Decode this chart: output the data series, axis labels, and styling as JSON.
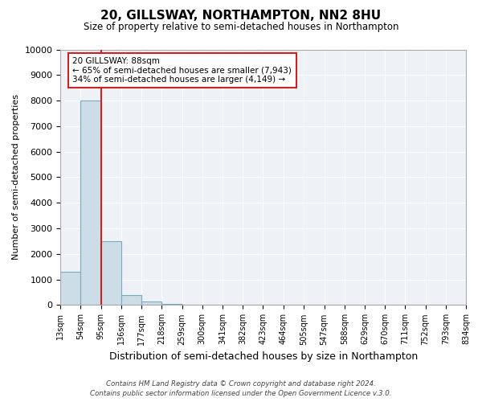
{
  "title": "20, GILLSWAY, NORTHAMPTON, NN2 8HU",
  "subtitle": "Size of property relative to semi-detached houses in Northampton",
  "xlabel": "Distribution of semi-detached houses by size in Northampton",
  "ylabel": "Number of semi-detached properties",
  "bar_color": "#ccdde8",
  "bar_edge_color": "#7aaabb",
  "background_color": "#eef2f7",
  "grid_color": "#ffffff",
  "fig_background": "#ffffff",
  "bin_labels": [
    "13sqm",
    "54sqm",
    "95sqm",
    "136sqm",
    "177sqm",
    "218sqm",
    "259sqm",
    "300sqm",
    "341sqm",
    "382sqm",
    "423sqm",
    "464sqm",
    "505sqm",
    "547sqm",
    "588sqm",
    "629sqm",
    "670sqm",
    "711sqm",
    "752sqm",
    "793sqm",
    "834sqm"
  ],
  "bin_values": [
    1300,
    8000,
    2500,
    400,
    150,
    50,
    20,
    0,
    0,
    0,
    0,
    0,
    0,
    0,
    0,
    0,
    0,
    0,
    0,
    0
  ],
  "bin_edges_sqm": [
    13,
    54,
    95,
    136,
    177,
    218,
    259,
    300,
    341,
    382,
    423,
    464,
    505,
    547,
    588,
    629,
    670,
    711,
    752,
    793,
    834
  ],
  "vline_x": 95,
  "ylim": [
    0,
    10000
  ],
  "yticks": [
    0,
    1000,
    2000,
    3000,
    4000,
    5000,
    6000,
    7000,
    8000,
    9000,
    10000
  ],
  "annotation_title": "20 GILLSWAY: 88sqm",
  "annotation_line1": "← 65% of semi-detached houses are smaller (7,943)",
  "annotation_line2": "34% of semi-detached houses are larger (4,149) →",
  "annotation_box_facecolor": "#ffffff",
  "annotation_box_edgecolor": "#cc2222",
  "vline_color": "#cc2222",
  "footer1": "Contains HM Land Registry data © Crown copyright and database right 2024.",
  "footer2": "Contains public sector information licensed under the Open Government Licence v.3.0."
}
